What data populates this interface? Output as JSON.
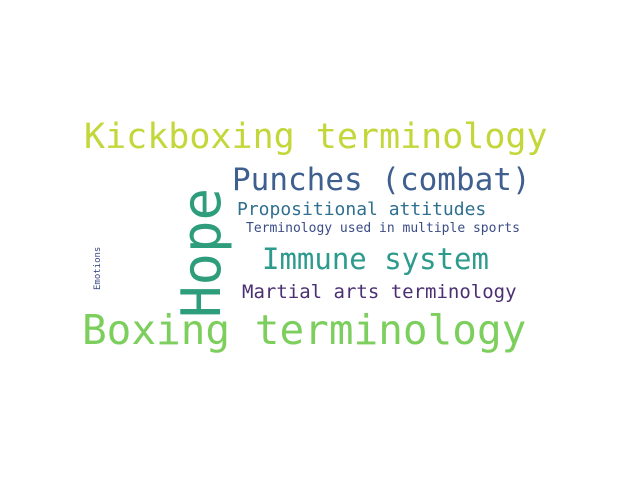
{
  "words": [
    {
      "text": "Kickboxing terminology",
      "color": "#c3d73a"
    },
    {
      "text": "Hope",
      "color": "#2d9d7b"
    },
    {
      "text": "Punches (combat)",
      "color": "#3f5f8f"
    },
    {
      "text": "Propositional attitudes",
      "color": "#2f6f8f"
    },
    {
      "text": "Terminology used in multiple sports",
      "color": "#3b4d86"
    },
    {
      "text": "Immune system",
      "color": "#2c9a8c"
    },
    {
      "text": "Martial arts terminology",
      "color": "#4b2f72"
    },
    {
      "text": "Boxing terminology",
      "color": "#7ccf5c"
    },
    {
      "text": "Emotions",
      "color": "#3b4a85"
    }
  ]
}
